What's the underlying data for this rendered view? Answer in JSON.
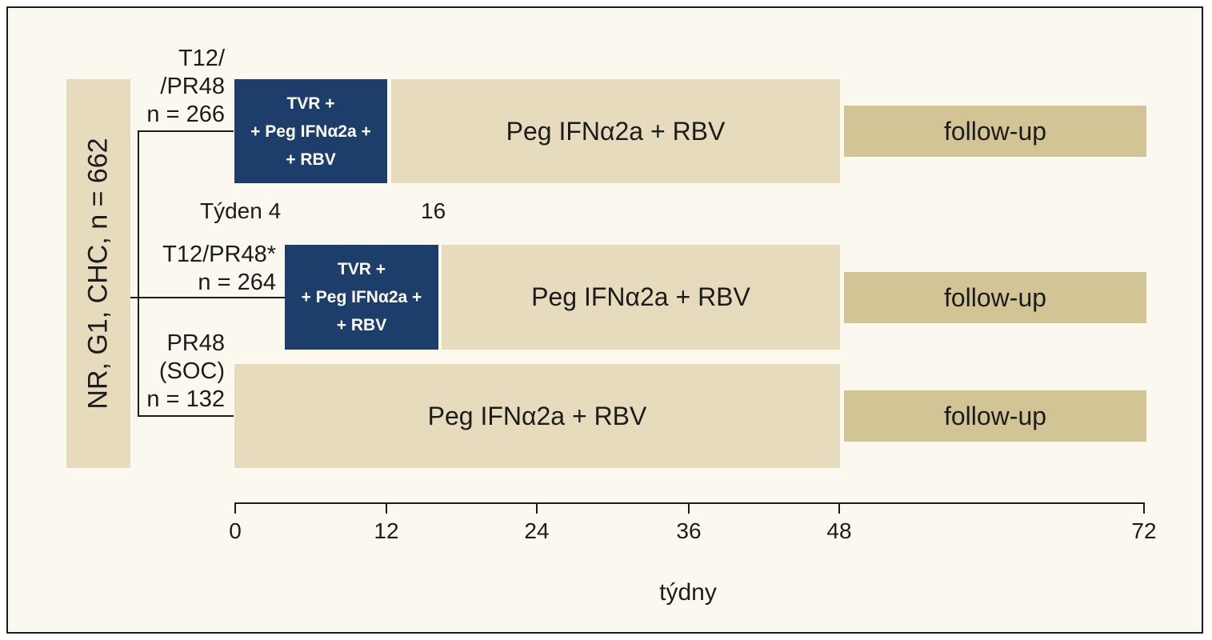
{
  "population": {
    "label": "NR, G1, CHC, n = 662"
  },
  "arms": [
    {
      "label_lines": [
        "T12/",
        "/PR48",
        "n = 266"
      ],
      "tvr_lines": [
        "TVR +",
        "+ Peg IFNα2a +",
        "+ RBV"
      ],
      "tvr_weeks": [
        0,
        12
      ],
      "peg_label": "Peg IFNα2a + RBV",
      "peg_weeks": [
        12,
        48
      ],
      "followup_label": "follow-up",
      "followup_weeks": [
        48,
        72
      ]
    },
    {
      "label_lines": [
        "T12/PR48*",
        "n = 264"
      ],
      "tvr_lines": [
        "TVR +",
        "+ Peg IFNα2a +",
        "+ RBV"
      ],
      "tvr_weeks": [
        4,
        16
      ],
      "peg_label": "Peg IFNα2a + RBV",
      "peg_weeks": [
        16,
        48
      ],
      "followup_label": "follow-up",
      "followup_weeks": [
        48,
        72
      ]
    },
    {
      "label_lines": [
        "PR48",
        "(SOC)",
        "n = 132"
      ],
      "peg_label": "Peg IFNα2a + RBV",
      "peg_weeks": [
        0,
        48
      ],
      "followup_label": "follow-up",
      "followup_weeks": [
        48,
        72
      ]
    }
  ],
  "markers": {
    "week4": "Týden 4",
    "week16": "16"
  },
  "axis": {
    "title": "týdny",
    "ticks": [
      "0",
      "12",
      "24",
      "36",
      "48",
      "72"
    ],
    "range": [
      0,
      72
    ]
  },
  "colors": {
    "tvr_block": "#1d3e6b",
    "peg_block": "#e7dbbd",
    "followup_block": "#d3c495",
    "background": "#fbf8ef"
  }
}
